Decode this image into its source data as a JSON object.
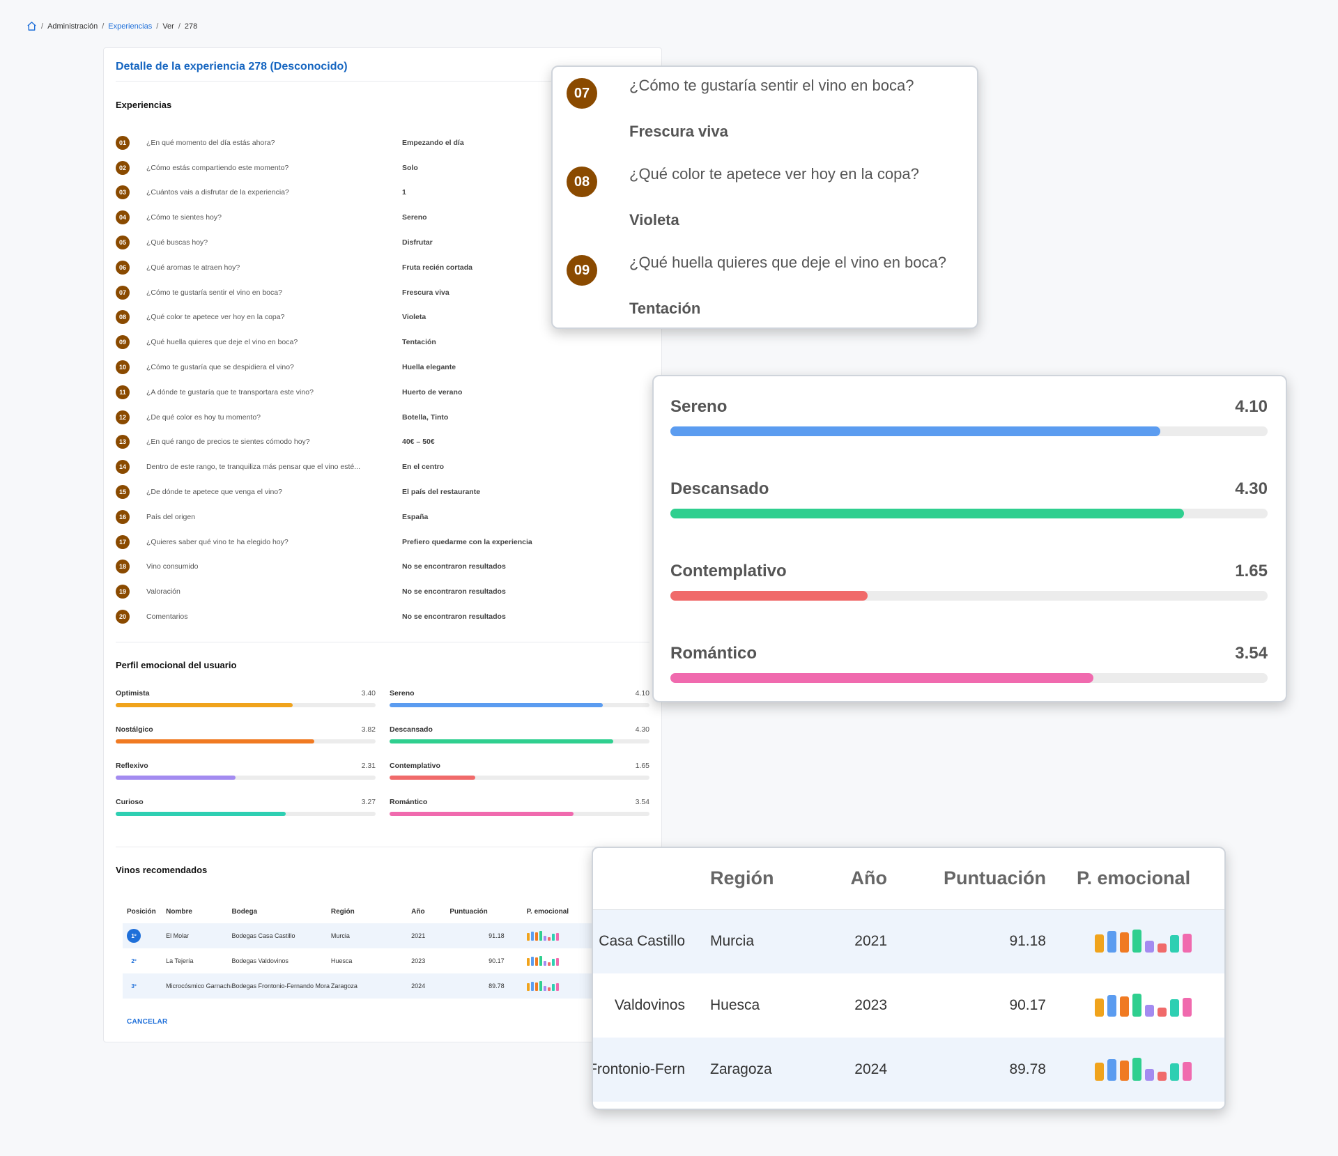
{
  "breadcrumb": {
    "items": [
      "Administración",
      "Experiencias",
      "Ver",
      "278"
    ]
  },
  "card": {
    "title": "Detalle de la experiencia 278 (Desconocido)",
    "experiences_title": "Experiencias",
    "profile_title": "Perfil emocional del usuario",
    "wines_title": "Vinos recomendados",
    "cancel_label": "CANCELAR"
  },
  "questions": [
    {
      "num": "01",
      "q": "¿En qué momento del día estás ahora?",
      "a": "Empezando el día"
    },
    {
      "num": "02",
      "q": "¿Cómo estás compartiendo este momento?",
      "a": "Solo"
    },
    {
      "num": "03",
      "q": "¿Cuántos vais a disfrutar de la experiencia?",
      "a": "1"
    },
    {
      "num": "04",
      "q": "¿Cómo te sientes hoy?",
      "a": "Sereno"
    },
    {
      "num": "05",
      "q": "¿Qué buscas hoy?",
      "a": "Disfrutar"
    },
    {
      "num": "06",
      "q": "¿Qué aromas te atraen hoy?",
      "a": "Fruta recién cortada"
    },
    {
      "num": "07",
      "q": "¿Cómo te gustaría sentir el vino en boca?",
      "a": "Frescura viva"
    },
    {
      "num": "08",
      "q": "¿Qué color te apetece ver hoy en la copa?",
      "a": "Violeta"
    },
    {
      "num": "09",
      "q": "¿Qué huella quieres que deje el vino en boca?",
      "a": "Tentación"
    },
    {
      "num": "10",
      "q": "¿Cómo te gustaría que se despidiera el vino?",
      "a": "Huella elegante"
    },
    {
      "num": "11",
      "q": "¿A dónde te gustaría que te transportara este vino?",
      "a": "Huerto de verano"
    },
    {
      "num": "12",
      "q": "¿De qué color es hoy tu momento?",
      "a": "Botella, Tinto"
    },
    {
      "num": "13",
      "q": "¿En qué rango de precios te sientes cómodo hoy?",
      "a": "40€ – 50€"
    },
    {
      "num": "14",
      "q": "Dentro de este rango, te tranquiliza más pensar que el vino esté...",
      "a": "En el centro"
    },
    {
      "num": "15",
      "q": "¿De dónde te apetece que venga el vino?",
      "a": "El país del restaurante"
    },
    {
      "num": "16",
      "q": "País del origen",
      "a": "España"
    },
    {
      "num": "17",
      "q": "¿Quieres saber qué vino te ha elegido hoy?",
      "a": "Prefiero quedarme con la experiencia"
    },
    {
      "num": "18",
      "q": "Vino consumido",
      "a": "No se encontraron resultados"
    },
    {
      "num": "19",
      "q": "Valoración",
      "a": "No se encontraron resultados"
    },
    {
      "num": "20",
      "q": "Comentarios",
      "a": "No se encontraron resultados"
    }
  ],
  "emotions": [
    {
      "label": "Optimista",
      "value": "3.40",
      "fraction": 0.68,
      "color": "#f0a31c"
    },
    {
      "label": "Sereno",
      "value": "4.10",
      "fraction": 0.82,
      "color": "#5b9cf0"
    },
    {
      "label": "Nostálgico",
      "value": "3.82",
      "fraction": 0.764,
      "color": "#f07a22"
    },
    {
      "label": "Descansado",
      "value": "4.30",
      "fraction": 0.86,
      "color": "#2fcf8f"
    },
    {
      "label": "Reflexivo",
      "value": "2.31",
      "fraction": 0.462,
      "color": "#a38bf0"
    },
    {
      "label": "Contemplativo",
      "value": "1.65",
      "fraction": 0.33,
      "color": "#f06a6a"
    },
    {
      "label": "Curioso",
      "value": "3.27",
      "fraction": 0.654,
      "color": "#2ecfb2"
    },
    {
      "label": "Romántico",
      "value": "3.54",
      "fraction": 0.708,
      "color": "#f06aae"
    }
  ],
  "wines": {
    "headers": [
      "Posición",
      "Nombre",
      "Bodega",
      "Región",
      "Año",
      "Puntuación",
      "P. emocional"
    ],
    "rows": [
      {
        "pos": "1º",
        "name": "El Molar",
        "winery": "Bodegas Casa Castillo",
        "region": "Murcia",
        "year": "2021",
        "score": "91.18",
        "shaded": true,
        "bars": [
          0.68,
          0.82,
          0.76,
          0.86,
          0.46,
          0.33,
          0.65,
          0.71
        ]
      },
      {
        "pos": "2º",
        "name": "La Tejería",
        "winery": "Bodegas Valdovinos",
        "region": "Huesca",
        "year": "2023",
        "score": "90.17",
        "shaded": false,
        "bars": [
          0.68,
          0.82,
          0.76,
          0.86,
          0.46,
          0.33,
          0.65,
          0.71
        ]
      },
      {
        "pos": "3º",
        "name": "Microcósmico Garnacha",
        "winery": "Bodegas Frontonio-Fernando Mora V",
        "region": "Zaragoza",
        "year": "2024",
        "score": "89.78",
        "shaded": true,
        "bars": [
          0.68,
          0.82,
          0.76,
          0.86,
          0.46,
          0.33,
          0.65,
          0.71
        ]
      }
    ],
    "bar_colors": [
      "#f0a31c",
      "#5b9cf0",
      "#f07a22",
      "#2fcf8f",
      "#a38bf0",
      "#f06a6a",
      "#2ecfb2",
      "#f06aae"
    ]
  },
  "zoom_questions": [
    {
      "num": "07",
      "q": "¿Cómo te gustaría sentir el vino en boca?",
      "a": "Frescura viva"
    },
    {
      "num": "08",
      "q": "¿Qué color te apetece ver hoy en la copa?",
      "a": "Violeta"
    },
    {
      "num": "09",
      "q": "¿Qué huella quieres que deje el vino en boca?",
      "a": "Tentación"
    }
  ],
  "zoom_emotions": [
    {
      "label": "Sereno",
      "value": "4.10",
      "fraction": 0.82,
      "color": "#5b9cf0"
    },
    {
      "label": "Descansado",
      "value": "4.30",
      "fraction": 0.86,
      "color": "#2fcf8f"
    },
    {
      "label": "Contemplativo",
      "value": "1.65",
      "fraction": 0.33,
      "color": "#f06a6a"
    },
    {
      "label": "Romántico",
      "value": "3.54",
      "fraction": 0.708,
      "color": "#f06aae"
    }
  ],
  "zoom_wines": {
    "headers": [
      "Región",
      "Año",
      "Puntuación",
      "P. emocional"
    ],
    "rows": [
      {
        "winery_fragment": "Casa Castillo",
        "region": "Murcia",
        "year": "2021",
        "score": "91.18",
        "shaded": true
      },
      {
        "winery_fragment": "Valdovinos",
        "region": "Huesca",
        "year": "2023",
        "score": "90.17",
        "shaded": false
      },
      {
        "winery_fragment": "Frontonio-Fern",
        "region": "Zaragoza",
        "year": "2024",
        "score": "89.78",
        "shaded": true
      }
    ]
  }
}
